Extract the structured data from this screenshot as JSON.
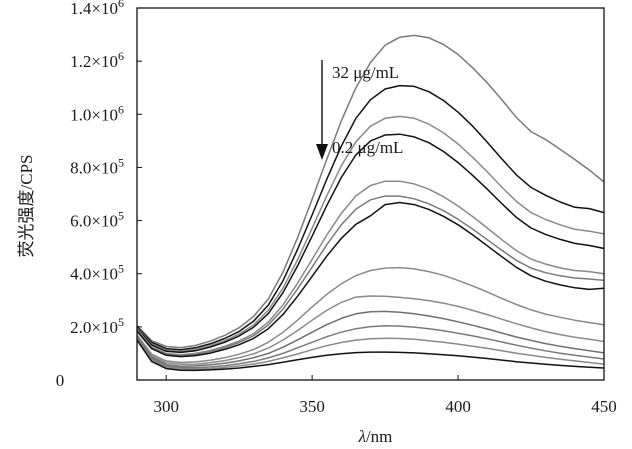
{
  "chart_data": {
    "type": "line",
    "xlabel_italic": "λ",
    "xlabel_rest": "/nm",
    "ylabel": "荧光强度/CPS",
    "xlim": [
      290,
      450
    ],
    "ylim": [
      0,
      1400000
    ],
    "x_ticks": [
      300,
      350,
      400,
      450
    ],
    "x_tick_labels": [
      "300",
      "350",
      "400",
      "450"
    ],
    "y_ticks": [
      {
        "value": 0,
        "mant": "0",
        "exp": ""
      },
      {
        "value": 200000,
        "mant": "2.0×10",
        "exp": "5"
      },
      {
        "value": 400000,
        "mant": "4.0×10",
        "exp": "5"
      },
      {
        "value": 600000,
        "mant": "6.0×10",
        "exp": "5"
      },
      {
        "value": 800000,
        "mant": "8.0×10",
        "exp": "5"
      },
      {
        "value": 1000000,
        "mant": "1.0×10",
        "exp": "6"
      },
      {
        "value": 1200000,
        "mant": "1.2×10",
        "exp": "6"
      },
      {
        "value": 1400000,
        "mant": "1.4×10",
        "exp": "6"
      }
    ],
    "annotations": {
      "top_label": "32 μg/mL",
      "bottom_label": "0.2 μg/mL",
      "arrow_x": 322
    },
    "grid": false,
    "x": [
      290,
      295,
      300,
      305,
      310,
      315,
      320,
      325,
      330,
      335,
      340,
      345,
      350,
      355,
      360,
      365,
      370,
      375,
      380,
      385,
      390,
      395,
      400,
      405,
      410,
      415,
      420,
      425,
      430,
      435,
      440,
      445,
      450
    ],
    "series": [
      {
        "color": "#7a7a7a",
        "values": [
          205000,
          148000,
          126000,
          122000,
          130000,
          146000,
          168000,
          197000,
          240000,
          305000,
          405000,
          535000,
          680000,
          830000,
          975000,
          1100000,
          1195000,
          1260000,
          1290000,
          1297000,
          1288000,
          1263000,
          1225000,
          1175000,
          1118000,
          1055000,
          988000,
          935000,
          905000,
          868000,
          830000,
          790000,
          745000
        ]
      },
      {
        "color": "#111111",
        "values": [
          200000,
          142000,
          118000,
          114000,
          121000,
          136000,
          156000,
          183000,
          222000,
          282000,
          373000,
          491000,
          621000,
          755000,
          880000,
          985000,
          1055000,
          1095000,
          1108000,
          1105000,
          1085000,
          1052000,
          1008000,
          955000,
          895000,
          832000,
          772000,
          725000,
          695000,
          670000,
          650000,
          645000,
          630000
        ]
      },
      {
        "color": "#8a8a8a",
        "values": [
          196000,
          136000,
          112000,
          108000,
          115000,
          129000,
          148000,
          173000,
          208000,
          263000,
          345000,
          452000,
          571000,
          693000,
          806000,
          897000,
          955000,
          985000,
          992000,
          985000,
          963000,
          930000,
          888000,
          838000,
          783000,
          726000,
          672000,
          630000,
          604000,
          584000,
          567000,
          560000,
          550000
        ]
      },
      {
        "color": "#111111",
        "values": [
          193000,
          132000,
          108000,
          104000,
          110000,
          124000,
          142000,
          166000,
          199000,
          250000,
          328000,
          429000,
          541000,
          656000,
          762000,
          847000,
          900000,
          922000,
          925000,
          915000,
          893000,
          860000,
          818000,
          770000,
          718000,
          664000,
          612000,
          572000,
          548000,
          529000,
          514000,
          506000,
          495000
        ]
      },
      {
        "color": "#8a8a8a",
        "values": [
          190000,
          125000,
          100000,
          95000,
          100000,
          111000,
          127000,
          147000,
          175000,
          218000,
          282000,
          364000,
          454000,
          545000,
          627000,
          693000,
          732000,
          748000,
          748000,
          738000,
          718000,
          690000,
          655000,
          615000,
          572000,
          528000,
          487000,
          455000,
          436000,
          422000,
          412000,
          408000,
          400000
        ]
      },
      {
        "color": "#7a7a7a",
        "values": [
          187000,
          122000,
          97000,
          92000,
          96000,
          107000,
          122000,
          141000,
          167000,
          207000,
          266000,
          342000,
          425000,
          509000,
          584000,
          643000,
          678000,
          692000,
          692000,
          682000,
          663000,
          637000,
          605000,
          568000,
          528000,
          488000,
          450000,
          421000,
          404000,
          392000,
          384000,
          380000,
          375000
        ]
      },
      {
        "color": "#111111",
        "values": [
          184000,
          118000,
          93000,
          88000,
          92000,
          101000,
          115000,
          133000,
          157000,
          193000,
          246000,
          315000,
          390000,
          466000,
          533000,
          586000,
          618000,
          660000,
          668000,
          660000,
          642000,
          616000,
          584000,
          546000,
          505000,
          464000,
          424000,
          392000,
          372000,
          358000,
          347000,
          341000,
          345000
        ]
      },
      {
        "color": "#8a8a8a",
        "values": [
          170000,
          98000,
          72000,
          66000,
          68000,
          74000,
          84000,
          97000,
          115000,
          142000,
          179000,
          225000,
          275000,
          322000,
          362000,
          393000,
          412000,
          421000,
          423000,
          418000,
          408000,
          394000,
          375000,
          354000,
          331000,
          307000,
          284000,
          264000,
          248000,
          236000,
          225000,
          216000,
          208000
        ]
      },
      {
        "color": "#8a8a8a",
        "values": [
          166000,
          92000,
          65000,
          59000,
          60000,
          65000,
          73000,
          84000,
          99000,
          120000,
          150000,
          186000,
          225000,
          262000,
          292000,
          312000,
          316000,
          315000,
          311000,
          306000,
          299000,
          289000,
          277000,
          262000,
          246000,
          229000,
          212000,
          196000,
          182000,
          171000,
          161000,
          153000,
          145000
        ]
      },
      {
        "color": "#6f6f6f",
        "values": [
          162000,
          86000,
          58000,
          52000,
          53000,
          57000,
          63000,
          72000,
          84000,
          100000,
          123000,
          151000,
          180000,
          208000,
          232000,
          249000,
          257000,
          258000,
          255000,
          249000,
          241000,
          231000,
          219000,
          206000,
          192000,
          177000,
          162000,
          149000,
          137000,
          127000,
          118000,
          110000,
          102000
        ]
      },
      {
        "color": "#7a7a7a",
        "values": [
          158000,
          80000,
          52000,
          46000,
          46000,
          49000,
          54000,
          61000,
          70000,
          83000,
          100000,
          121000,
          142000,
          163000,
          180000,
          193000,
          201000,
          204000,
          203000,
          199000,
          193000,
          185000,
          176000,
          166000,
          155000,
          143000,
          131000,
          120000,
          110000,
          101000,
          93000,
          86000,
          79000
        ]
      },
      {
        "color": "#8a8a8a",
        "values": [
          154000,
          75000,
          47000,
          41000,
          41000,
          43000,
          47000,
          53000,
          60000,
          70000,
          83000,
          98000,
          114000,
          129000,
          141000,
          150000,
          155000,
          157000,
          156000,
          153000,
          148000,
          142000,
          135000,
          127000,
          119000,
          110000,
          101000,
          93000,
          85000,
          78000,
          72000,
          66000,
          60000
        ]
      },
      {
        "color": "#111111",
        "values": [
          150000,
          70000,
          43000,
          37000,
          36000,
          38000,
          41000,
          45000,
          51000,
          58000,
          67000,
          76000,
          85000,
          93000,
          99000,
          103000,
          105000,
          105000,
          104000,
          102000,
          99000,
          95000,
          91000,
          86000,
          81000,
          75000,
          69000,
          64000,
          59000,
          55000,
          51000,
          48000,
          45000
        ]
      }
    ]
  }
}
